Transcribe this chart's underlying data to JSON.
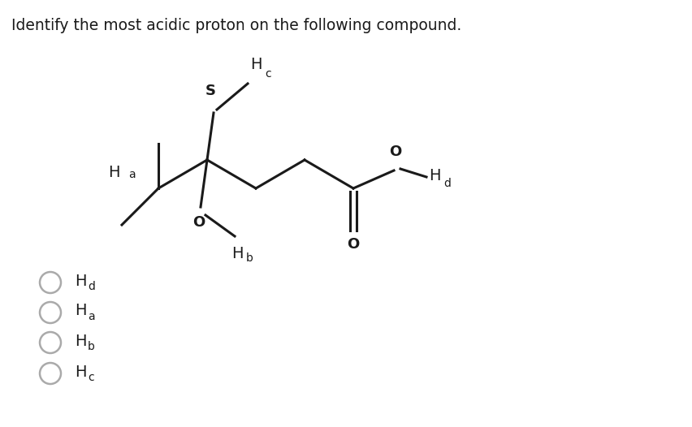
{
  "title": "Identify the most acidic proton on the following compound.",
  "title_fontsize": 13.5,
  "bg_color": "#ffffff",
  "line_color": "#1a1a1a",
  "label_color": "#1a1a1a",
  "choices": [
    [
      "H",
      "d"
    ],
    [
      "H",
      "a"
    ],
    [
      "H",
      "b"
    ],
    [
      "H",
      "c"
    ]
  ]
}
